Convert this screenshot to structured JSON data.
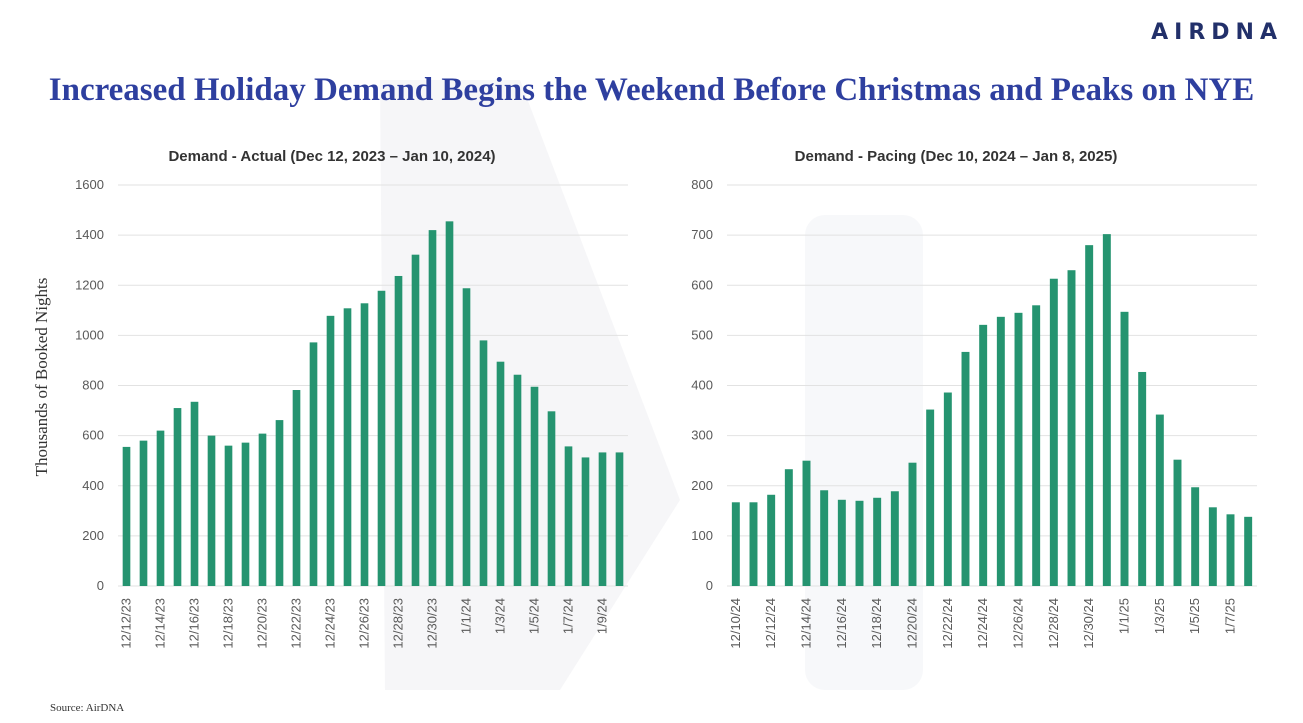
{
  "brand": {
    "logo_text": "AIRDNA"
  },
  "headline": "Increased Holiday Demand Begins the Weekend Before Christmas and Peaks on NYE",
  "y_axis_label": "Thousands of Booked Nights",
  "source": "Source: AirDNA",
  "colors": {
    "bar": "#259470",
    "title": "#2e3f9f"
  },
  "chart_data": [
    {
      "type": "bar",
      "title": "Demand - Actual (Dec 12, 2023 – Jan 10, 2024)",
      "ylabel": "Thousands of Booked Nights",
      "ylim": [
        0,
        1600
      ],
      "yticks": [
        0,
        200,
        400,
        600,
        800,
        1000,
        1200,
        1400,
        1600
      ],
      "xtick_labels": [
        "12/12/23",
        "12/14/23",
        "12/16/23",
        "12/18/23",
        "12/20/23",
        "12/22/23",
        "12/24/23",
        "12/26/23",
        "12/28/23",
        "12/30/23",
        "1/1/24",
        "1/3/24",
        "1/5/24",
        "1/7/24",
        "1/9/24"
      ],
      "categories": [
        "12/12/23",
        "12/13/23",
        "12/14/23",
        "12/15/23",
        "12/16/23",
        "12/17/23",
        "12/18/23",
        "12/19/23",
        "12/20/23",
        "12/21/23",
        "12/22/23",
        "12/23/23",
        "12/24/23",
        "12/25/23",
        "12/26/23",
        "12/27/23",
        "12/28/23",
        "12/29/23",
        "12/30/23",
        "12/31/23",
        "1/1/24",
        "1/2/24",
        "1/3/24",
        "1/4/24",
        "1/5/24",
        "1/6/24",
        "1/7/24",
        "1/8/24",
        "1/9/24",
        "1/10/24"
      ],
      "values": [
        555,
        580,
        620,
        710,
        735,
        600,
        560,
        572,
        608,
        662,
        782,
        972,
        1078,
        1108,
        1128,
        1178,
        1237,
        1322,
        1420,
        1455,
        1188,
        980,
        895,
        843,
        795,
        697,
        557,
        513,
        533,
        533
      ]
    },
    {
      "type": "bar",
      "title": "Demand - Pacing (Dec 10, 2024 – Jan 8, 2025)",
      "ylabel": "",
      "ylim": [
        0,
        800
      ],
      "yticks": [
        0,
        100,
        200,
        300,
        400,
        500,
        600,
        700,
        800
      ],
      "xtick_labels": [
        "12/10/24",
        "12/12/24",
        "12/14/24",
        "12/16/24",
        "12/18/24",
        "12/20/24",
        "12/22/24",
        "12/24/24",
        "12/26/24",
        "12/28/24",
        "12/30/24",
        "1/1/25",
        "1/3/25",
        "1/5/25",
        "1/7/25"
      ],
      "categories": [
        "12/10/24",
        "12/11/24",
        "12/12/24",
        "12/13/24",
        "12/14/24",
        "12/15/24",
        "12/16/24",
        "12/17/24",
        "12/18/24",
        "12/19/24",
        "12/20/24",
        "12/21/24",
        "12/22/24",
        "12/23/24",
        "12/24/24",
        "12/25/24",
        "12/26/24",
        "12/27/24",
        "12/28/24",
        "12/29/24",
        "12/30/24",
        "12/31/24",
        "1/1/25",
        "1/2/25",
        "1/3/25",
        "1/4/25",
        "1/5/25",
        "1/6/25",
        "1/7/25",
        "1/8/25"
      ],
      "values": [
        167,
        167,
        182,
        233,
        250,
        191,
        172,
        170,
        176,
        189,
        246,
        352,
        386,
        467,
        521,
        537,
        545,
        560,
        613,
        630,
        680,
        702,
        547,
        427,
        342,
        252,
        197,
        157,
        143,
        138
      ]
    }
  ]
}
